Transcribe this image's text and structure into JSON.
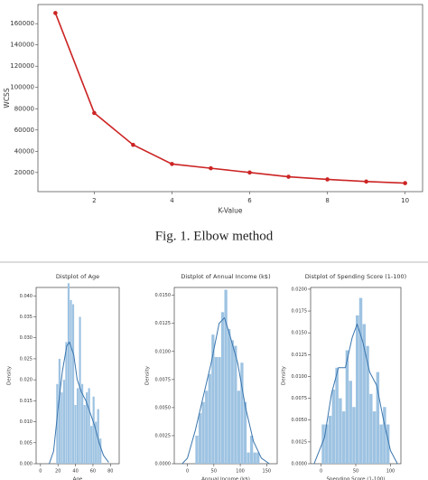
{
  "caption": "Fig. 1.   Elbow method",
  "chart_data": [
    {
      "type": "line",
      "xlabel": "K-Value",
      "ylabel": "WCSS",
      "x": [
        1,
        2,
        3,
        4,
        5,
        6,
        7,
        8,
        9,
        10
      ],
      "series": [
        {
          "color": "#cc2424",
          "values": [
            170000,
            76000,
            46000,
            28000,
            24000,
            20000,
            16000,
            13500,
            11500,
            10000
          ]
        }
      ],
      "xlim": [
        0.55,
        10.45
      ],
      "ylim": [
        2000,
        178000
      ],
      "xticks": [
        2,
        4,
        6,
        8,
        10
      ],
      "yticks": [
        20000,
        40000,
        60000,
        80000,
        100000,
        120000,
        140000,
        160000
      ]
    },
    {
      "type": "histogram",
      "title": "Distplot of Age",
      "xlabel": "Age",
      "ylabel": "Density",
      "color": "#9ec3e2",
      "bins": [
        18,
        20.6,
        23.2,
        25.8,
        28.4,
        31,
        33.6,
        36.2,
        38.8,
        41.4,
        44,
        46.6,
        49.2,
        51.8,
        54.4,
        57,
        59.6,
        62.2,
        64.8,
        67.4,
        70
      ],
      "values": [
        0.019,
        0.025,
        0.017,
        0.02,
        0.029,
        0.043,
        0.039,
        0.038,
        0.014,
        0.018,
        0.035,
        0.019,
        0.014,
        0.017,
        0.018,
        0.009,
        0.016,
        0.01,
        0.013,
        0.006
      ],
      "kde": {
        "color": "#3a75ad",
        "x": [
          10,
          15,
          20,
          25,
          30,
          33,
          38,
          42,
          47,
          52,
          57,
          62,
          67,
          72,
          78
        ],
        "y": [
          0,
          0.003,
          0.013,
          0.022,
          0.028,
          0.029,
          0.026,
          0.02,
          0.017,
          0.015,
          0.012,
          0.009,
          0.005,
          0.002,
          0.0003
        ]
      },
      "xlim": [
        -5,
        90
      ],
      "ylim": [
        0,
        0.042
      ],
      "xticks": [
        0,
        20,
        40,
        60,
        80
      ],
      "yticks": [
        {
          "value": 0,
          "label": "0.000"
        },
        {
          "value": 0.005,
          "label": "0.005"
        },
        {
          "value": 0.01,
          "label": "0.010"
        },
        {
          "value": 0.015,
          "label": "0.015"
        },
        {
          "value": 0.02,
          "label": "0.020"
        },
        {
          "value": 0.025,
          "label": "0.025"
        },
        {
          "value": 0.03,
          "label": "0.030"
        },
        {
          "value": 0.035,
          "label": "0.035"
        },
        {
          "value": 0.04,
          "label": "0.040"
        }
      ]
    },
    {
      "type": "histogram",
      "title": "Distplot of Annual Income (k$)",
      "xlabel": "Annual Income (k$)",
      "ylabel": "Density",
      "color": "#9ec3e2",
      "bins": [
        15,
        21.1,
        27.2,
        33.3,
        39.4,
        45.5,
        51.6,
        57.7,
        63.8,
        69.9,
        76,
        82.1,
        88.2,
        94.3,
        100.4,
        106.5,
        112.6,
        118.7,
        124.8,
        130.9,
        137
      ],
      "values": [
        0.0025,
        0.0045,
        0.0055,
        0.0065,
        0.008,
        0.0115,
        0.0095,
        0.0095,
        0.0135,
        0.0155,
        0.012,
        0.011,
        0.0105,
        0.0065,
        0.009,
        0.0055,
        0.001,
        0.0025,
        0.001,
        0.001
      ],
      "kde": {
        "color": "#3a75ad",
        "x": [
          -10,
          0,
          15,
          30,
          45,
          60,
          70,
          80,
          95,
          110,
          125,
          140,
          155
        ],
        "y": [
          0,
          0.0005,
          0.003,
          0.006,
          0.009,
          0.0125,
          0.013,
          0.0115,
          0.009,
          0.005,
          0.002,
          0.0005,
          0
        ]
      },
      "xlim": [
        -25,
        170
      ],
      "ylim": [
        0,
        0.0157
      ],
      "xticks": [
        0,
        50,
        100,
        150
      ],
      "yticks": [
        {
          "value": 0,
          "label": "0.0000"
        },
        {
          "value": 0.0025,
          "label": "0.0025"
        },
        {
          "value": 0.005,
          "label": "0.0050"
        },
        {
          "value": 0.0075,
          "label": "0.0075"
        },
        {
          "value": 0.01,
          "label": "0.0100"
        },
        {
          "value": 0.0125,
          "label": "0.0125"
        },
        {
          "value": 0.015,
          "label": "0.0150"
        }
      ]
    },
    {
      "type": "histogram",
      "title": "Distplot of Spending Score (1-100)",
      "xlabel": "Spending Score (1-100)",
      "ylabel": "Density",
      "color": "#9ec3e2",
      "bins": [
        1,
        5.9,
        10.8,
        15.7,
        20.6,
        25.5,
        30.4,
        35.3,
        40.2,
        45.1,
        50,
        54.9,
        59.8,
        64.7,
        69.6,
        74.5,
        79.4,
        84.3,
        89.2,
        94.1,
        99
      ],
      "values": [
        0.0045,
        0.0045,
        0.0055,
        0.0085,
        0.011,
        0.0075,
        0.006,
        0.013,
        0.0095,
        0.0065,
        0.017,
        0.019,
        0.016,
        0.0135,
        0.008,
        0.006,
        0.0105,
        0.0045,
        0.0065,
        0.0045
      ],
      "kde": {
        "color": "#3a75ad",
        "x": [
          -10,
          5,
          15,
          25,
          35,
          45,
          52,
          60,
          70,
          80,
          90,
          100,
          110
        ],
        "y": [
          0,
          0.003,
          0.008,
          0.011,
          0.011,
          0.0145,
          0.016,
          0.014,
          0.0105,
          0.009,
          0.005,
          0.0015,
          0
        ]
      },
      "xlim": [
        -15,
        115
      ],
      "ylim": [
        0,
        0.0202
      ],
      "xticks": [
        0,
        50,
        100
      ],
      "yticks": [
        {
          "value": 0,
          "label": "0.0000"
        },
        {
          "value": 0.0025,
          "label": "0.0025"
        },
        {
          "value": 0.005,
          "label": "0.0050"
        },
        {
          "value": 0.0075,
          "label": "0.0075"
        },
        {
          "value": 0.01,
          "label": "0.0100"
        },
        {
          "value": 0.0125,
          "label": "0.0125"
        },
        {
          "value": 0.015,
          "label": "0.0150"
        },
        {
          "value": 0.0175,
          "label": "0.0175"
        },
        {
          "value": 0.02,
          "label": "0.0200"
        }
      ]
    }
  ]
}
